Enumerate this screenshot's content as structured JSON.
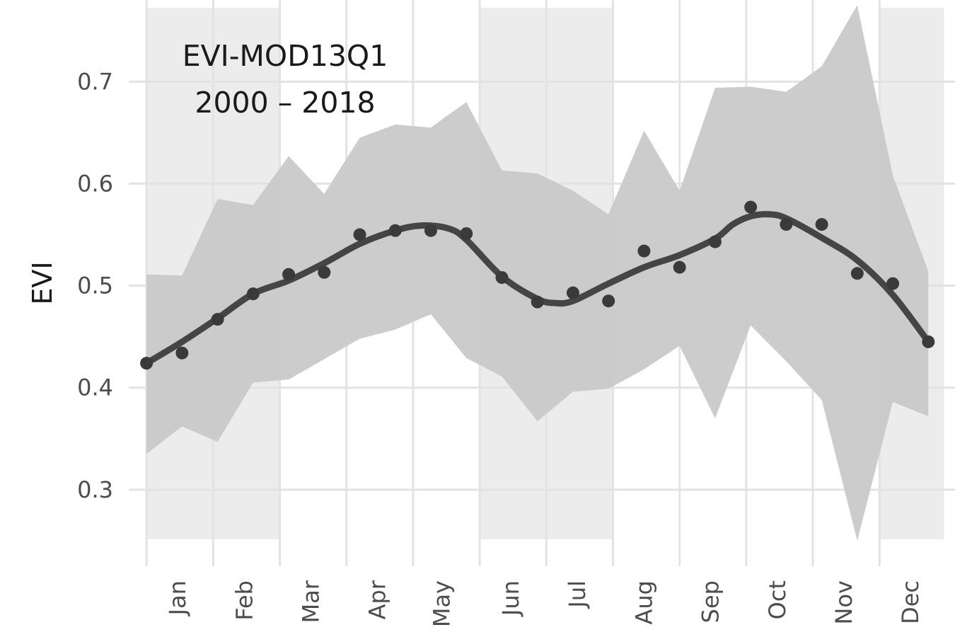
{
  "chart_data": {
    "type": "line",
    "title": "",
    "xlabel": "",
    "ylabel": "EVI",
    "ylim": [
      0.225,
      0.78
    ],
    "yticks": [
      0.3,
      0.4,
      0.5,
      0.6,
      0.7
    ],
    "ytick_labels": [
      "0.3",
      "0.4",
      "0.5",
      "0.6",
      "0.7"
    ],
    "x_unit": "day of year",
    "xlim": [
      -7,
      365
    ],
    "month_labels": [
      "Jan",
      "Feb",
      "Mar",
      "Apr",
      "May",
      "Jun",
      "Jul",
      "Aug",
      "Sep",
      "Oct",
      "Nov",
      "Dec"
    ],
    "month_label_x": [
      15,
      45,
      75,
      105,
      134,
      165,
      195,
      225,
      255,
      285,
      315,
      345
    ],
    "month_boundaries": [
      1,
      31,
      61,
      91,
      121,
      151,
      181,
      211,
      241,
      271,
      301,
      331
    ],
    "annotation": [
      "EVI-MOD13Q1",
      "2000 – 2018"
    ],
    "shaded_periods": [
      [
        1,
        61
      ],
      [
        151,
        211
      ],
      [
        331,
        360
      ]
    ],
    "grid": true,
    "legend": "none",
    "colors": {
      "line": "#454545",
      "points": "#3a3a3a",
      "ribbon": "#c9c9c9",
      "shade": "#ececec",
      "grid": "#e3e3e3"
    },
    "series": [
      {
        "kind": "points",
        "x": [
          1,
          17,
          33,
          49,
          65,
          81,
          97,
          113,
          129,
          145,
          161,
          177,
          193,
          209,
          225,
          241,
          257,
          273,
          289,
          305,
          321,
          337,
          353
        ],
        "y": [
          0.424,
          0.434,
          0.467,
          0.492,
          0.511,
          0.513,
          0.55,
          0.554,
          0.554,
          0.551,
          0.508,
          0.484,
          0.493,
          0.485,
          0.534,
          0.518,
          0.543,
          0.577,
          0.56,
          0.56,
          0.512,
          0.502,
          0.445
        ]
      },
      {
        "kind": "smooth",
        "x": [
          1,
          17,
          33,
          49,
          65,
          81,
          97,
          113,
          125,
          137,
          145,
          161,
          177,
          185,
          193,
          209,
          225,
          241,
          257,
          265,
          273,
          281,
          289,
          305,
          321,
          337,
          353
        ],
        "y": [
          0.424,
          0.445,
          0.468,
          0.492,
          0.505,
          0.522,
          0.541,
          0.554,
          0.559,
          0.556,
          0.545,
          0.509,
          0.487,
          0.483,
          0.485,
          0.502,
          0.518,
          0.53,
          0.546,
          0.56,
          0.568,
          0.57,
          0.566,
          0.547,
          0.525,
          0.491,
          0.445
        ]
      },
      {
        "kind": "ribbon",
        "x": [
          1,
          17,
          33,
          49,
          65,
          81,
          97,
          113,
          129,
          145,
          161,
          177,
          193,
          209,
          225,
          241,
          257,
          273,
          289,
          305,
          321,
          337,
          353
        ],
        "upper": [
          0.511,
          0.51,
          0.585,
          0.579,
          0.627,
          0.59,
          0.645,
          0.658,
          0.655,
          0.68,
          0.613,
          0.61,
          0.593,
          0.57,
          0.652,
          0.593,
          0.694,
          0.695,
          0.69,
          0.715,
          0.775,
          0.608,
          0.514
        ],
        "lower": [
          0.335,
          0.362,
          0.347,
          0.405,
          0.408,
          0.428,
          0.448,
          0.457,
          0.472,
          0.429,
          0.411,
          0.367,
          0.396,
          0.399,
          0.418,
          0.441,
          0.37,
          0.461,
          0.426,
          0.388,
          0.25,
          0.386,
          0.372
        ]
      }
    ]
  }
}
